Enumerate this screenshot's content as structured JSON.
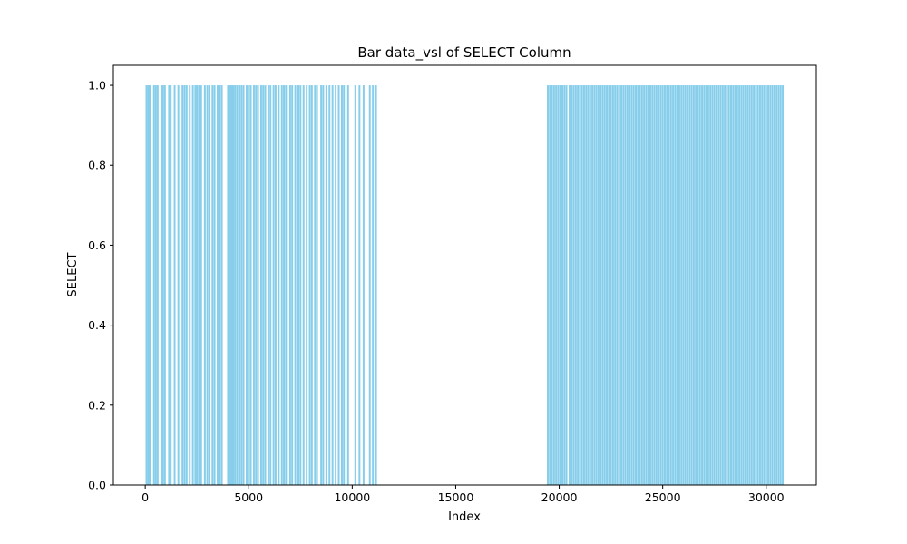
{
  "chart_data": {
    "type": "bar",
    "title": "Bar data_vsl of SELECT Column",
    "xlabel": "Index",
    "ylabel": "SELECT",
    "xlim": [
      -1540,
      32420
    ],
    "ylim": [
      0,
      1.05
    ],
    "xticks": [
      0,
      5000,
      10000,
      15000,
      20000,
      25000,
      30000
    ],
    "xtick_labels": [
      "0",
      "5000",
      "10000",
      "15000",
      "20000",
      "25000",
      "30000"
    ],
    "yticks": [
      0.0,
      0.2,
      0.4,
      0.6,
      0.8,
      1.0
    ],
    "ytick_labels": [
      "0.0",
      "0.2",
      "0.4",
      "0.6",
      "0.8",
      "1.0"
    ],
    "grid": false,
    "legend": "none",
    "bar_color": "#87ceeb",
    "series": [
      {
        "values": [
          {
            "x": 60,
            "y": 1
          },
          {
            "x": 150,
            "y": 1
          },
          {
            "x": 230,
            "y": 1
          },
          {
            "x": 420,
            "y": 1
          },
          {
            "x": 510,
            "y": 1
          },
          {
            "x": 600,
            "y": 1
          },
          {
            "x": 780,
            "y": 1
          },
          {
            "x": 860,
            "y": 1
          },
          {
            "x": 950,
            "y": 1
          },
          {
            "x": 1150,
            "y": 1
          },
          {
            "x": 1230,
            "y": 1
          },
          {
            "x": 1420,
            "y": 1
          },
          {
            "x": 1600,
            "y": 1
          },
          {
            "x": 1800,
            "y": 1
          },
          {
            "x": 1900,
            "y": 1
          },
          {
            "x": 2000,
            "y": 1
          },
          {
            "x": 2150,
            "y": 1
          },
          {
            "x": 2300,
            "y": 1
          },
          {
            "x": 2420,
            "y": 1
          },
          {
            "x": 2500,
            "y": 1
          },
          {
            "x": 2600,
            "y": 1
          },
          {
            "x": 2700,
            "y": 1
          },
          {
            "x": 2880,
            "y": 1
          },
          {
            "x": 3000,
            "y": 1
          },
          {
            "x": 3100,
            "y": 1
          },
          {
            "x": 3250,
            "y": 1
          },
          {
            "x": 3350,
            "y": 1
          },
          {
            "x": 3500,
            "y": 1
          },
          {
            "x": 3600,
            "y": 1
          },
          {
            "x": 3700,
            "y": 1
          },
          {
            "x": 4000,
            "y": 1
          },
          {
            "x": 4100,
            "y": 1
          },
          {
            "x": 4180,
            "y": 1
          },
          {
            "x": 4260,
            "y": 1
          },
          {
            "x": 4350,
            "y": 1
          },
          {
            "x": 4450,
            "y": 1
          },
          {
            "x": 4550,
            "y": 1
          },
          {
            "x": 4650,
            "y": 1
          },
          {
            "x": 4750,
            "y": 1
          },
          {
            "x": 4900,
            "y": 1
          },
          {
            "x": 5000,
            "y": 1
          },
          {
            "x": 5100,
            "y": 1
          },
          {
            "x": 5250,
            "y": 1
          },
          {
            "x": 5350,
            "y": 1
          },
          {
            "x": 5450,
            "y": 1
          },
          {
            "x": 5600,
            "y": 1
          },
          {
            "x": 5700,
            "y": 1
          },
          {
            "x": 5800,
            "y": 1
          },
          {
            "x": 5950,
            "y": 1
          },
          {
            "x": 6050,
            "y": 1
          },
          {
            "x": 6200,
            "y": 1
          },
          {
            "x": 6300,
            "y": 1
          },
          {
            "x": 6450,
            "y": 1
          },
          {
            "x": 6600,
            "y": 1
          },
          {
            "x": 6700,
            "y": 1
          },
          {
            "x": 6800,
            "y": 1
          },
          {
            "x": 7000,
            "y": 1
          },
          {
            "x": 7100,
            "y": 1
          },
          {
            "x": 7250,
            "y": 1
          },
          {
            "x": 7400,
            "y": 1
          },
          {
            "x": 7500,
            "y": 1
          },
          {
            "x": 7650,
            "y": 1
          },
          {
            "x": 7800,
            "y": 1
          },
          {
            "x": 7950,
            "y": 1
          },
          {
            "x": 8050,
            "y": 1
          },
          {
            "x": 8200,
            "y": 1
          },
          {
            "x": 8300,
            "y": 1
          },
          {
            "x": 8500,
            "y": 1
          },
          {
            "x": 8600,
            "y": 1
          },
          {
            "x": 8750,
            "y": 1
          },
          {
            "x": 8900,
            "y": 1
          },
          {
            "x": 9050,
            "y": 1
          },
          {
            "x": 9200,
            "y": 1
          },
          {
            "x": 9350,
            "y": 1
          },
          {
            "x": 9500,
            "y": 1
          },
          {
            "x": 9600,
            "y": 1
          },
          {
            "x": 9800,
            "y": 1
          },
          {
            "x": 10150,
            "y": 1
          },
          {
            "x": 10350,
            "y": 1
          },
          {
            "x": 10550,
            "y": 1
          },
          {
            "x": 10850,
            "y": 1
          },
          {
            "x": 11000,
            "y": 1
          },
          {
            "x": 11150,
            "y": 1
          },
          {
            "x": 19450,
            "y": 1
          },
          {
            "x": 19550,
            "y": 1
          },
          {
            "x": 19650,
            "y": 1
          },
          {
            "x": 19750,
            "y": 1
          },
          {
            "x": 19850,
            "y": 1
          },
          {
            "x": 19950,
            "y": 1
          },
          {
            "x": 20050,
            "y": 1
          },
          {
            "x": 20150,
            "y": 1
          },
          {
            "x": 20250,
            "y": 1
          },
          {
            "x": 20350,
            "y": 1
          },
          {
            "x": 20500,
            "y": 1
          },
          {
            "x": 20600,
            "y": 1
          },
          {
            "x": 20700,
            "y": 1
          },
          {
            "x": 20800,
            "y": 1
          },
          {
            "x": 20900,
            "y": 1
          },
          {
            "x": 21000,
            "y": 1
          },
          {
            "x": 21100,
            "y": 1
          },
          {
            "x": 21200,
            "y": 1
          },
          {
            "x": 21300,
            "y": 1
          },
          {
            "x": 21400,
            "y": 1
          },
          {
            "x": 21500,
            "y": 1
          },
          {
            "x": 21600,
            "y": 1
          },
          {
            "x": 21700,
            "y": 1
          },
          {
            "x": 21800,
            "y": 1
          },
          {
            "x": 21900,
            "y": 1
          },
          {
            "x": 22000,
            "y": 1
          },
          {
            "x": 22100,
            "y": 1
          },
          {
            "x": 22200,
            "y": 1
          },
          {
            "x": 22300,
            "y": 1
          },
          {
            "x": 22400,
            "y": 1
          },
          {
            "x": 22500,
            "y": 1
          },
          {
            "x": 22600,
            "y": 1
          },
          {
            "x": 22700,
            "y": 1
          },
          {
            "x": 22800,
            "y": 1
          },
          {
            "x": 22900,
            "y": 1
          },
          {
            "x": 23000,
            "y": 1
          },
          {
            "x": 23100,
            "y": 1
          },
          {
            "x": 23200,
            "y": 1
          },
          {
            "x": 23300,
            "y": 1
          },
          {
            "x": 23400,
            "y": 1
          },
          {
            "x": 23500,
            "y": 1
          },
          {
            "x": 23600,
            "y": 1
          },
          {
            "x": 23700,
            "y": 1
          },
          {
            "x": 23800,
            "y": 1
          },
          {
            "x": 23900,
            "y": 1
          },
          {
            "x": 24000,
            "y": 1
          },
          {
            "x": 24100,
            "y": 1
          },
          {
            "x": 24200,
            "y": 1
          },
          {
            "x": 24300,
            "y": 1
          },
          {
            "x": 24400,
            "y": 1
          },
          {
            "x": 24500,
            "y": 1
          },
          {
            "x": 24600,
            "y": 1
          },
          {
            "x": 24700,
            "y": 1
          },
          {
            "x": 24800,
            "y": 1
          },
          {
            "x": 24900,
            "y": 1
          },
          {
            "x": 25000,
            "y": 1
          },
          {
            "x": 25100,
            "y": 1
          },
          {
            "x": 25200,
            "y": 1
          },
          {
            "x": 25300,
            "y": 1
          },
          {
            "x": 25400,
            "y": 1
          },
          {
            "x": 25500,
            "y": 1
          },
          {
            "x": 25600,
            "y": 1
          },
          {
            "x": 25700,
            "y": 1
          },
          {
            "x": 25800,
            "y": 1
          },
          {
            "x": 25900,
            "y": 1
          },
          {
            "x": 26000,
            "y": 1
          },
          {
            "x": 26100,
            "y": 1
          },
          {
            "x": 26200,
            "y": 1
          },
          {
            "x": 26300,
            "y": 1
          },
          {
            "x": 26400,
            "y": 1
          },
          {
            "x": 26500,
            "y": 1
          },
          {
            "x": 26600,
            "y": 1
          },
          {
            "x": 26700,
            "y": 1
          },
          {
            "x": 26800,
            "y": 1
          },
          {
            "x": 26900,
            "y": 1
          },
          {
            "x": 27000,
            "y": 1
          },
          {
            "x": 27100,
            "y": 1
          },
          {
            "x": 27200,
            "y": 1
          },
          {
            "x": 27300,
            "y": 1
          },
          {
            "x": 27400,
            "y": 1
          },
          {
            "x": 27500,
            "y": 1
          },
          {
            "x": 27600,
            "y": 1
          },
          {
            "x": 27700,
            "y": 1
          },
          {
            "x": 27800,
            "y": 1
          },
          {
            "x": 27900,
            "y": 1
          },
          {
            "x": 28000,
            "y": 1
          },
          {
            "x": 28100,
            "y": 1
          },
          {
            "x": 28200,
            "y": 1
          },
          {
            "x": 28300,
            "y": 1
          },
          {
            "x": 28400,
            "y": 1
          },
          {
            "x": 28500,
            "y": 1
          },
          {
            "x": 28600,
            "y": 1
          },
          {
            "x": 28700,
            "y": 1
          },
          {
            "x": 28800,
            "y": 1
          },
          {
            "x": 28900,
            "y": 1
          },
          {
            "x": 29000,
            "y": 1
          },
          {
            "x": 29100,
            "y": 1
          },
          {
            "x": 29200,
            "y": 1
          },
          {
            "x": 29300,
            "y": 1
          },
          {
            "x": 29400,
            "y": 1
          },
          {
            "x": 29500,
            "y": 1
          },
          {
            "x": 29600,
            "y": 1
          },
          {
            "x": 29700,
            "y": 1
          },
          {
            "x": 29800,
            "y": 1
          },
          {
            "x": 29900,
            "y": 1
          },
          {
            "x": 30000,
            "y": 1
          },
          {
            "x": 30100,
            "y": 1
          },
          {
            "x": 30200,
            "y": 1
          },
          {
            "x": 30300,
            "y": 1
          },
          {
            "x": 30400,
            "y": 1
          },
          {
            "x": 30500,
            "y": 1
          },
          {
            "x": 30600,
            "y": 1
          },
          {
            "x": 30700,
            "y": 1
          },
          {
            "x": 30800,
            "y": 1
          }
        ]
      }
    ]
  }
}
